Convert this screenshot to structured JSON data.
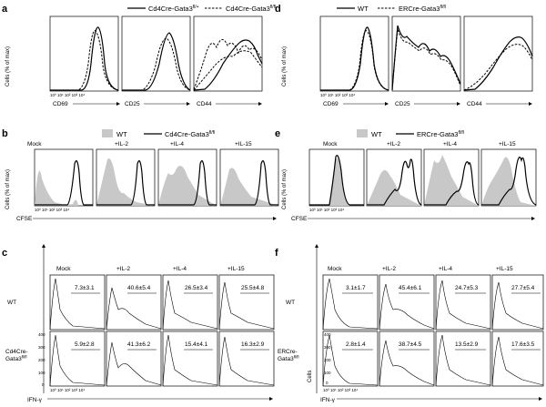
{
  "panels": {
    "a": {
      "label": "a",
      "legend": {
        "solid": "Cd4Cre-Gata3",
        "solid_sup": "fl/+",
        "dashed": "Cd4Cre-Gata3",
        "dashed_sup": "fl/fl"
      },
      "ylabel": "Cells (% of max)",
      "markers": [
        "CD69",
        "CD25",
        "CD44"
      ]
    },
    "d": {
      "label": "d",
      "legend": {
        "solid": "WT",
        "dashed": "ERCre-Gata3",
        "dashed_sup": "fl/fl"
      },
      "ylabel": "Cells (% of max)",
      "markers": [
        "CD69",
        "CD25",
        "CD44"
      ]
    },
    "b": {
      "label": "b",
      "legend": {
        "gray": "WT",
        "line": "Cd4Cre-Gata3",
        "line_sup": "fl/fl"
      },
      "ylabel": "Cells (% of max)",
      "xlabel": "CFSE",
      "conditions": [
        "Mock",
        "+IL-2",
        "+IL-4",
        "+IL-15"
      ]
    },
    "e": {
      "label": "e",
      "legend": {
        "gray": "WT",
        "line": "ERCre-Gata3",
        "line_sup": "fl/fl"
      },
      "ylabel": "Cells (% of max)",
      "xlabel": "CFSE",
      "conditions": [
        "Mock",
        "+IL-2",
        "+IL-4",
        "+IL-15"
      ]
    },
    "c": {
      "label": "c",
      "conditions": [
        "Mock",
        "+IL-2",
        "+IL-4",
        "+IL-15"
      ],
      "row_labels": [
        "WT",
        "Cd4Cre-",
        "Gata3"
      ],
      "row2_sup": "fl/fl",
      "xlabel": "IFN-γ",
      "stats": [
        [
          "7.3±3.1",
          "40.6±5.4",
          "26.5±3.4",
          "25.5±4.8"
        ],
        [
          "5.9±2.8",
          "41.3±6.2",
          "15.4±4.1",
          "16.3±2.9"
        ]
      ],
      "yticks": [
        "400",
        "300",
        "200",
        "100",
        "0"
      ]
    },
    "f": {
      "label": "f",
      "conditions": [
        "Mock",
        "+IL-2",
        "+IL-4",
        "+IL-15"
      ],
      "row_labels": [
        "WT",
        "ERCre-",
        "Gata3"
      ],
      "row2_sup": "fl/fl",
      "xlabel": "IFN-γ",
      "ylabel": "Cells",
      "stats": [
        [
          "3.1±1.7",
          "45.4±6.1",
          "24.7±5.3",
          "27.7±5.4"
        ],
        [
          "2.8±1.4",
          "38.7±4.5",
          "13.5±2.9",
          "17.6±3.5"
        ]
      ],
      "yticks": [
        "400",
        "300",
        "200",
        "100",
        "0"
      ]
    }
  },
  "axis_ticks": [
    "10⁰",
    "10¹",
    "10²",
    "10³",
    "10⁴"
  ]
}
